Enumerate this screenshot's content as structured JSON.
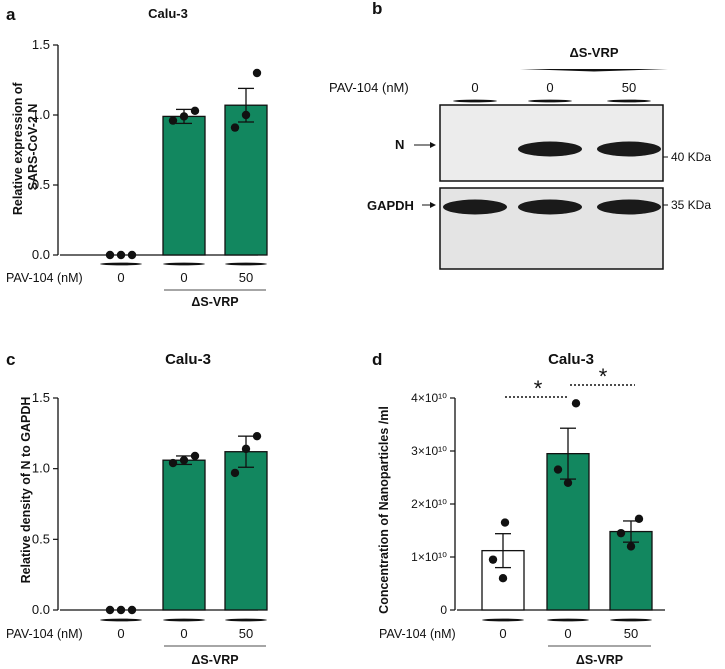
{
  "colors": {
    "green": "#12875f",
    "white": "#ffffff",
    "black": "#111111"
  },
  "chart_data": [
    {
      "type": "bar",
      "panel": "a",
      "title": "Calu-3",
      "ylabel": "Relative expression of SARS-CoV-2 N",
      "ylim": [
        0,
        1.5
      ],
      "yticks": [
        "0.0",
        "0.5",
        "1.0",
        "1.5"
      ],
      "ytick_values": [
        0,
        0.5,
        1.0,
        1.5
      ],
      "treatment_label": "PAV-104 (nM)",
      "categories": [
        "0",
        "0",
        "50"
      ],
      "group_label": "ΔS-VRP",
      "values": [
        0,
        0.99,
        1.07
      ],
      "errors": [
        0,
        0.05,
        0.12
      ],
      "points": [
        [
          0,
          0,
          0
        ],
        [
          0.96,
          0.99,
          1.03
        ],
        [
          0.91,
          1.0,
          1.3
        ]
      ],
      "bar_colors": [
        "#ffffff",
        "#12875f",
        "#12875f"
      ]
    },
    {
      "type": "bar",
      "panel": "c",
      "title": "Calu-3",
      "ylabel": "Relative density of N to GAPDH",
      "ylim": [
        0,
        1.5
      ],
      "yticks": [
        "0.0",
        "0.5",
        "1.0",
        "1.5"
      ],
      "ytick_values": [
        0,
        0.5,
        1.0,
        1.5
      ],
      "treatment_label": "PAV-104 (nM)",
      "categories": [
        "0",
        "0",
        "50"
      ],
      "group_label": "ΔS-VRP",
      "values": [
        0,
        1.06,
        1.12
      ],
      "errors": [
        0,
        0.03,
        0.11
      ],
      "points": [
        [
          0,
          0,
          0
        ],
        [
          1.04,
          1.06,
          1.09
        ],
        [
          0.97,
          1.14,
          1.23
        ]
      ],
      "bar_colors": [
        "#ffffff",
        "#12875f",
        "#12875f"
      ]
    },
    {
      "type": "bar",
      "panel": "d",
      "title": "Calu-3",
      "ylabel": "Concentration of Nanoparticles /ml",
      "ylim": [
        0,
        4
      ],
      "yticks": [
        "0",
        "1×10¹⁰",
        "2×10¹⁰",
        "3×10¹⁰",
        "4×10¹⁰"
      ],
      "ytick_values": [
        0,
        1,
        2,
        3,
        4
      ],
      "value_unit": "×10¹⁰",
      "treatment_label": "PAV-104 (nM)",
      "categories": [
        "0",
        "0",
        "50"
      ],
      "group_label": "ΔS-VRP",
      "values": [
        1.12,
        2.95,
        1.48
      ],
      "errors": [
        0.32,
        0.48,
        0.2
      ],
      "points": [
        [
          0.6,
          0.95,
          1.65
        ],
        [
          2.4,
          2.65,
          3.9
        ],
        [
          1.2,
          1.45,
          1.72
        ]
      ],
      "bar_colors": [
        "#ffffff",
        "#12875f",
        "#12875f"
      ],
      "significance": [
        "*",
        "*"
      ]
    }
  ],
  "blot": {
    "panel": "b",
    "group_label": "ΔS-VRP",
    "treatment_label": "PAV-104 (nM)",
    "lanes": [
      "0",
      "0",
      "50"
    ],
    "rows": [
      {
        "label": "N",
        "marker": "40 KDa",
        "intensities": [
          0,
          1,
          1
        ]
      },
      {
        "label": "GAPDH",
        "marker": "35 KDa",
        "intensities": [
          1,
          1,
          1
        ]
      }
    ]
  },
  "panel_letters": [
    "a",
    "b",
    "c",
    "d"
  ]
}
